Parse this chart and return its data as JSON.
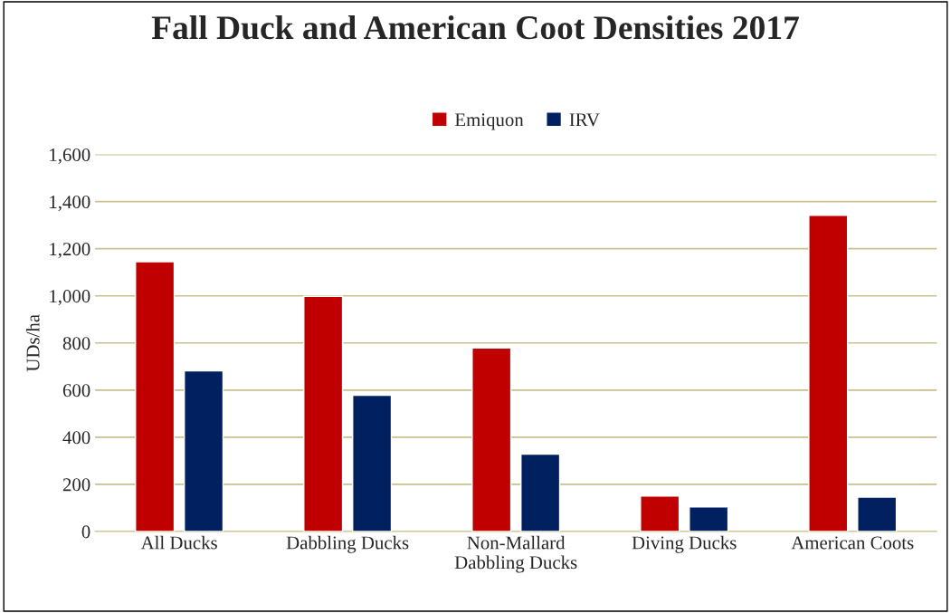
{
  "chart_data": {
    "type": "bar",
    "title": "Fall Duck and American Coot Densities 2017",
    "ylabel": "UDs/ha",
    "categories": [
      "All Ducks",
      "Dabbling Ducks",
      "Non-Mallard\nDabbling Ducks",
      "Diving Ducks",
      "American Coots"
    ],
    "series": [
      {
        "name": "Emiquon",
        "color": "#c00000",
        "values": [
          1145,
          998,
          779,
          150,
          1342
        ]
      },
      {
        "name": "IRV",
        "color": "#002060",
        "values": [
          682,
          578,
          328,
          104,
          146
        ]
      }
    ],
    "ylim": [
      0,
      1600
    ],
    "yticks": [
      {
        "value": 0,
        "label": "0"
      },
      {
        "value": 200,
        "label": "200"
      },
      {
        "value": 400,
        "label": "400"
      },
      {
        "value": 600,
        "label": "600"
      },
      {
        "value": 800,
        "label": "800"
      },
      {
        "value": 1000,
        "label": "1,000"
      },
      {
        "value": 1200,
        "label": "1,200"
      },
      {
        "value": 1400,
        "label": "1,400"
      },
      {
        "value": 1600,
        "label": "1,600"
      }
    ],
    "grid": "y",
    "legend": "top"
  }
}
